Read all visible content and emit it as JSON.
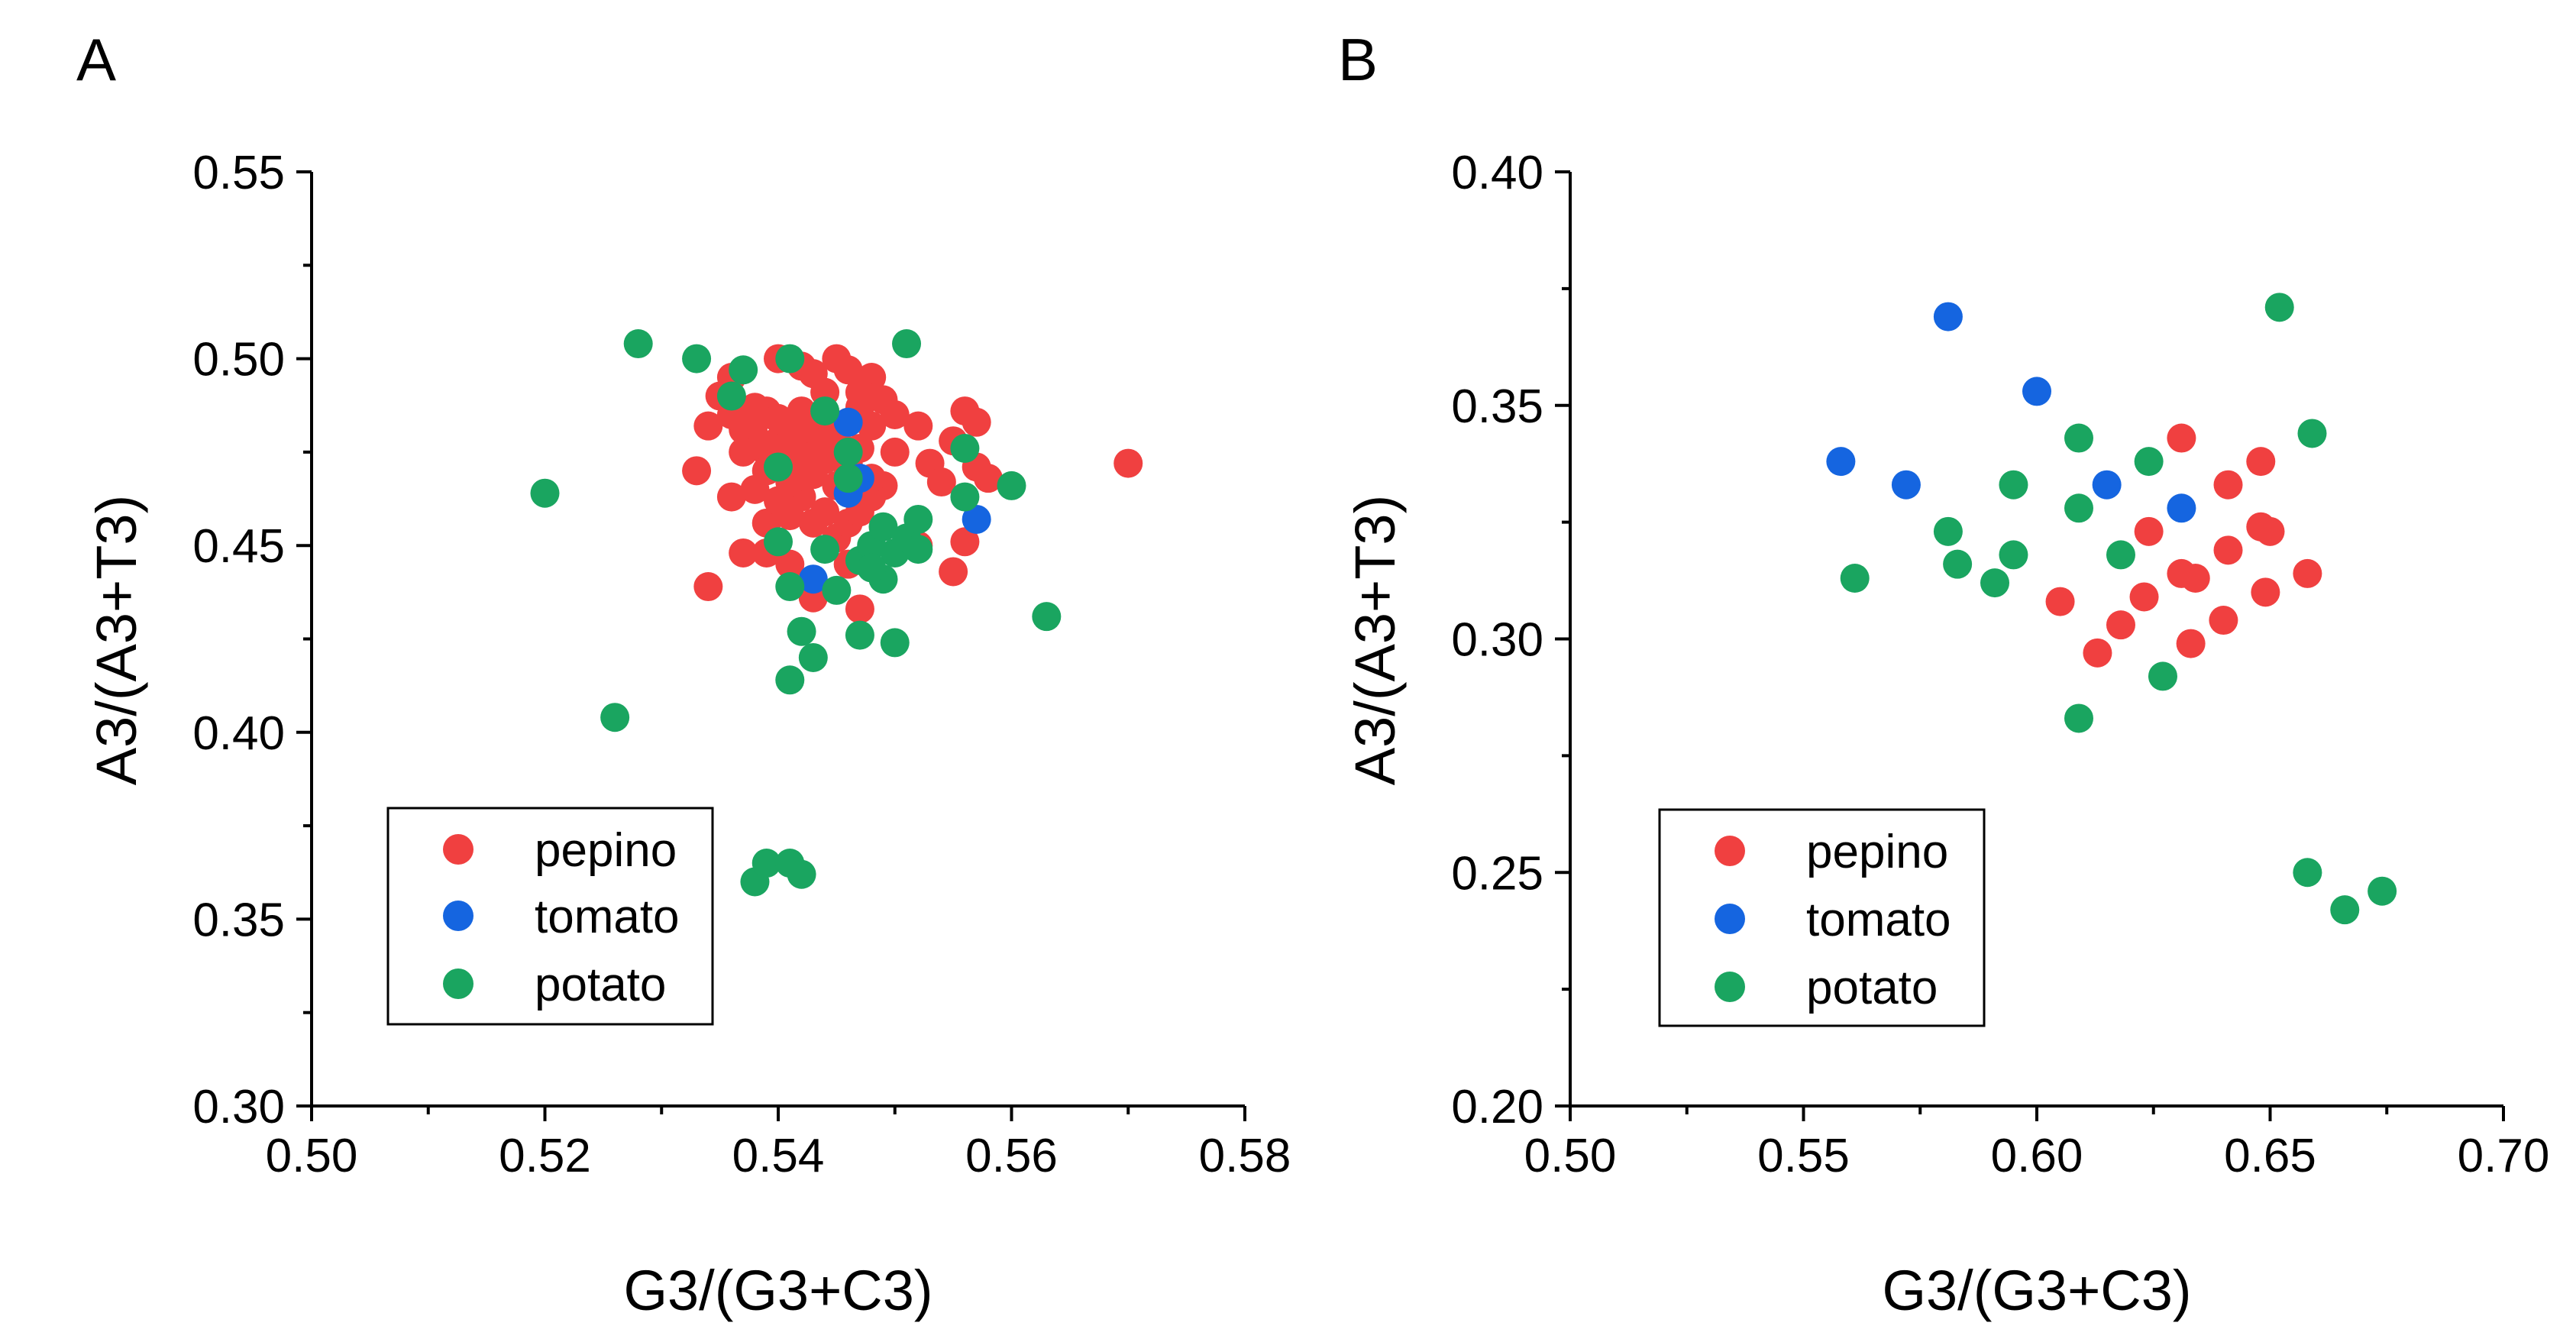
{
  "colors": {
    "pepino": "#f04040",
    "tomato": "#1565e0",
    "potato": "#1aa560"
  },
  "chart_data": [
    {
      "type": "scatter",
      "panel_label": "A",
      "xlabel": "G3/(G3+C3)",
      "ylabel": "A3/(A3+T3)",
      "xlim": [
        0.5,
        0.58
      ],
      "ylim": [
        0.3,
        0.55
      ],
      "xticks": [
        "0.50",
        "0.52",
        "0.54",
        "0.56",
        "0.58"
      ],
      "yticks": [
        "0.30",
        "0.35",
        "0.40",
        "0.45",
        "0.50",
        "0.55"
      ],
      "xtick_values": [
        0.5,
        0.52,
        0.54,
        0.56,
        0.58
      ],
      "ytick_values": [
        0.3,
        0.35,
        0.4,
        0.45,
        0.5,
        0.55
      ],
      "xminor": [
        0.51,
        0.53,
        0.55,
        0.57
      ],
      "yminor": [
        0.325,
        0.375,
        0.425,
        0.475,
        0.525
      ],
      "legend": [
        "pepino",
        "tomato",
        "potato"
      ],
      "legend_position": "bottom-left",
      "series": [
        {
          "name": "pepino",
          "points": [
            [
              0.535,
              0.49
            ],
            [
              0.536,
              0.485
            ],
            [
              0.537,
              0.481
            ],
            [
              0.538,
              0.487
            ],
            [
              0.538,
              0.479
            ],
            [
              0.539,
              0.486
            ],
            [
              0.539,
              0.475
            ],
            [
              0.54,
              0.484
            ],
            [
              0.54,
              0.478
            ],
            [
              0.541,
              0.482
            ],
            [
              0.541,
              0.472
            ],
            [
              0.542,
              0.486
            ],
            [
              0.542,
              0.476
            ],
            [
              0.543,
              0.481
            ],
            [
              0.543,
              0.469
            ],
            [
              0.544,
              0.485
            ],
            [
              0.544,
              0.473
            ],
            [
              0.545,
              0.479
            ],
            [
              0.545,
              0.466
            ],
            [
              0.546,
              0.483
            ],
            [
              0.546,
              0.47
            ],
            [
              0.547,
              0.487
            ],
            [
              0.547,
              0.476
            ],
            [
              0.548,
              0.495
            ],
            [
              0.548,
              0.482
            ],
            [
              0.536,
              0.495
            ],
            [
              0.54,
              0.5
            ],
            [
              0.542,
              0.498
            ],
            [
              0.543,
              0.496
            ],
            [
              0.545,
              0.5
            ],
            [
              0.546,
              0.497
            ],
            [
              0.544,
              0.491
            ],
            [
              0.547,
              0.491
            ],
            [
              0.549,
              0.489
            ],
            [
              0.55,
              0.485
            ],
            [
              0.534,
              0.482
            ],
            [
              0.533,
              0.47
            ],
            [
              0.537,
              0.475
            ],
            [
              0.536,
              0.463
            ],
            [
              0.538,
              0.465
            ],
            [
              0.539,
              0.456
            ],
            [
              0.54,
              0.462
            ],
            [
              0.541,
              0.458
            ],
            [
              0.542,
              0.463
            ],
            [
              0.543,
              0.456
            ],
            [
              0.544,
              0.459
            ],
            [
              0.545,
              0.452
            ],
            [
              0.546,
              0.456
            ],
            [
              0.547,
              0.459
            ],
            [
              0.548,
              0.463
            ],
            [
              0.549,
              0.466
            ],
            [
              0.55,
              0.475
            ],
            [
              0.552,
              0.482
            ],
            [
              0.553,
              0.472
            ],
            [
              0.554,
              0.467
            ],
            [
              0.555,
              0.478
            ],
            [
              0.556,
              0.486
            ],
            [
              0.557,
              0.483
            ],
            [
              0.557,
              0.471
            ],
            [
              0.558,
              0.468
            ],
            [
              0.556,
              0.451
            ],
            [
              0.555,
              0.443
            ],
            [
              0.552,
              0.45
            ],
            [
              0.547,
              0.433
            ],
            [
              0.543,
              0.436
            ],
            [
              0.539,
              0.448
            ],
            [
              0.537,
              0.448
            ],
            [
              0.534,
              0.439
            ],
            [
              0.541,
              0.445
            ],
            [
              0.546,
              0.445
            ],
            [
              0.57,
              0.472
            ],
            [
              0.539,
              0.47
            ],
            [
              0.541,
              0.467
            ],
            [
              0.543,
              0.474
            ],
            [
              0.544,
              0.478
            ],
            [
              0.546,
              0.472
            ],
            [
              0.548,
              0.468
            ],
            [
              0.538,
              0.483
            ],
            [
              0.542,
              0.471
            ],
            [
              0.545,
              0.475
            ]
          ]
        },
        {
          "name": "tomato",
          "points": [
            [
              0.543,
              0.441
            ],
            [
              0.546,
              0.464
            ],
            [
              0.547,
              0.468
            ],
            [
              0.557,
              0.457
            ],
            [
              0.546,
              0.483
            ]
          ]
        },
        {
          "name": "potato",
          "points": [
            [
              0.52,
              0.464
            ],
            [
              0.526,
              0.404
            ],
            [
              0.528,
              0.504
            ],
            [
              0.533,
              0.5
            ],
            [
              0.536,
              0.49
            ],
            [
              0.537,
              0.497
            ],
            [
              0.538,
              0.36
            ],
            [
              0.539,
              0.365
            ],
            [
              0.54,
              0.451
            ],
            [
              0.54,
              0.471
            ],
            [
              0.541,
              0.5
            ],
            [
              0.541,
              0.365
            ],
            [
              0.541,
              0.439
            ],
            [
              0.541,
              0.414
            ],
            [
              0.542,
              0.427
            ],
            [
              0.542,
              0.362
            ],
            [
              0.543,
              0.42
            ],
            [
              0.544,
              0.486
            ],
            [
              0.544,
              0.449
            ],
            [
              0.545,
              0.438
            ],
            [
              0.546,
              0.475
            ],
            [
              0.546,
              0.468
            ],
            [
              0.547,
              0.446
            ],
            [
              0.547,
              0.426
            ],
            [
              0.548,
              0.45
            ],
            [
              0.549,
              0.441
            ],
            [
              0.549,
              0.455
            ],
            [
              0.55,
              0.424
            ],
            [
              0.55,
              0.448
            ],
            [
              0.551,
              0.504
            ],
            [
              0.551,
              0.452
            ],
            [
              0.552,
              0.449
            ],
            [
              0.552,
              0.457
            ],
            [
              0.556,
              0.476
            ],
            [
              0.556,
              0.463
            ],
            [
              0.56,
              0.466
            ],
            [
              0.563,
              0.431
            ],
            [
              0.548,
              0.444
            ]
          ]
        }
      ]
    },
    {
      "type": "scatter",
      "panel_label": "B",
      "xlabel": "G3/(G3+C3)",
      "ylabel": "A3/(A3+T3)",
      "xlim": [
        0.5,
        0.7
      ],
      "ylim": [
        0.2,
        0.4
      ],
      "xticks": [
        "0.50",
        "0.55",
        "0.60",
        "0.65",
        "0.70"
      ],
      "yticks": [
        "0.20",
        "0.25",
        "0.30",
        "0.35",
        "0.40"
      ],
      "xtick_values": [
        0.5,
        0.55,
        0.6,
        0.65,
        0.7
      ],
      "ytick_values": [
        0.2,
        0.25,
        0.3,
        0.35,
        0.4
      ],
      "xminor": [
        0.525,
        0.575,
        0.625,
        0.675
      ],
      "yminor": [
        0.225,
        0.275,
        0.325,
        0.375
      ],
      "legend": [
        "pepino",
        "tomato",
        "potato"
      ],
      "legend_position": "bottom-left",
      "series": [
        {
          "name": "pepino",
          "points": [
            [
              0.605,
              0.308
            ],
            [
              0.613,
              0.297
            ],
            [
              0.618,
              0.303
            ],
            [
              0.623,
              0.309
            ],
            [
              0.624,
              0.323
            ],
            [
              0.631,
              0.343
            ],
            [
              0.631,
              0.314
            ],
            [
              0.633,
              0.299
            ],
            [
              0.634,
              0.313
            ],
            [
              0.64,
              0.304
            ],
            [
              0.641,
              0.319
            ],
            [
              0.641,
              0.333
            ],
            [
              0.648,
              0.338
            ],
            [
              0.648,
              0.324
            ],
            [
              0.649,
              0.31
            ],
            [
              0.65,
              0.323
            ],
            [
              0.658,
              0.314
            ]
          ]
        },
        {
          "name": "tomato",
          "points": [
            [
              0.558,
              0.338
            ],
            [
              0.572,
              0.333
            ],
            [
              0.581,
              0.369
            ],
            [
              0.6,
              0.353
            ],
            [
              0.615,
              0.333
            ],
            [
              0.631,
              0.328
            ]
          ]
        },
        {
          "name": "potato",
          "points": [
            [
              0.561,
              0.313
            ],
            [
              0.581,
              0.323
            ],
            [
              0.583,
              0.316
            ],
            [
              0.591,
              0.312
            ],
            [
              0.595,
              0.333
            ],
            [
              0.595,
              0.318
            ],
            [
              0.609,
              0.343
            ],
            [
              0.609,
              0.328
            ],
            [
              0.609,
              0.283
            ],
            [
              0.618,
              0.318
            ],
            [
              0.624,
              0.338
            ],
            [
              0.627,
              0.292
            ],
            [
              0.652,
              0.371
            ],
            [
              0.658,
              0.25
            ],
            [
              0.659,
              0.344
            ],
            [
              0.666,
              0.242
            ],
            [
              0.674,
              0.246
            ]
          ]
        }
      ]
    }
  ]
}
